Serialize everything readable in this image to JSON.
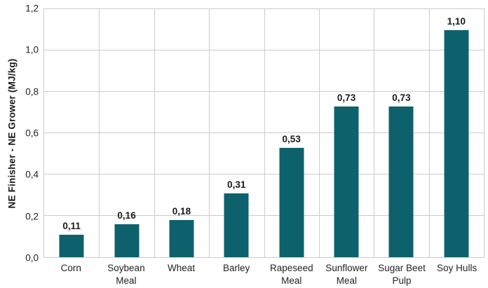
{
  "chart_data": {
    "type": "bar",
    "categories": [
      "Corn",
      "Soybean Meal",
      "Wheat",
      "Barley",
      "Rapeseed Meal",
      "Sunflower Meal",
      "Sugar Beet Pulp",
      "Soy Hulls"
    ],
    "values": [
      0.11,
      0.16,
      0.18,
      0.31,
      0.53,
      0.73,
      0.73,
      1.1
    ],
    "value_labels": [
      "0,11",
      "0,16",
      "0,18",
      "0,31",
      "0,53",
      "0,73",
      "0,73",
      "1,10"
    ],
    "title": "",
    "xlabel": "",
    "ylabel": "NE Finisher - NE Grower (MJ/kg)",
    "ylim": [
      0,
      1.2
    ],
    "yticks": [
      0,
      0.2,
      0.4,
      0.6,
      0.8,
      1.0,
      1.2
    ],
    "ytick_labels": [
      "0,0",
      "0,2",
      "0,4",
      "0,6",
      "0,8",
      "1,0",
      "1,2"
    ],
    "grid": true,
    "legend": false,
    "colors": {
      "bar": "#0d616d",
      "grid": "#cccccc",
      "text": "#1a1a1a",
      "background": "#ffffff"
    }
  }
}
